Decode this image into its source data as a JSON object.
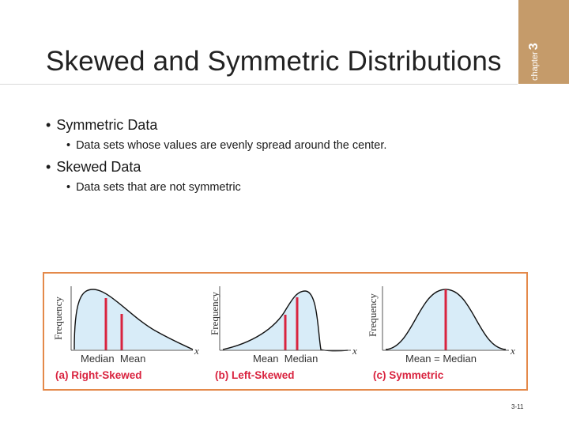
{
  "slide": {
    "title": "Skewed and Symmetric Distributions",
    "chapter_label": "chapter",
    "chapter_number": "3",
    "page_number": "3-11"
  },
  "bullets": [
    {
      "text": "Symmetric Data",
      "sub": "Data sets whose values are evenly spread around the center."
    },
    {
      "text": "Skewed Data",
      "sub": "Data sets that are not symmetric"
    }
  ],
  "figure": {
    "y_axis_label": "Frequency",
    "x_axis_label": "x",
    "panels": [
      {
        "caption": "(a) Right-Skewed",
        "marker_label": "Median  Mean"
      },
      {
        "caption": "(b) Left-Skewed",
        "marker_label": "Mean  Median"
      },
      {
        "caption": "(c) Symmetric",
        "marker_label": "Mean = Median"
      }
    ],
    "colors": {
      "fill": "#d8ecf8",
      "curve": "#111111",
      "marker": "#d9233f",
      "caption": "#d9233f",
      "border": "#e4894a"
    }
  }
}
